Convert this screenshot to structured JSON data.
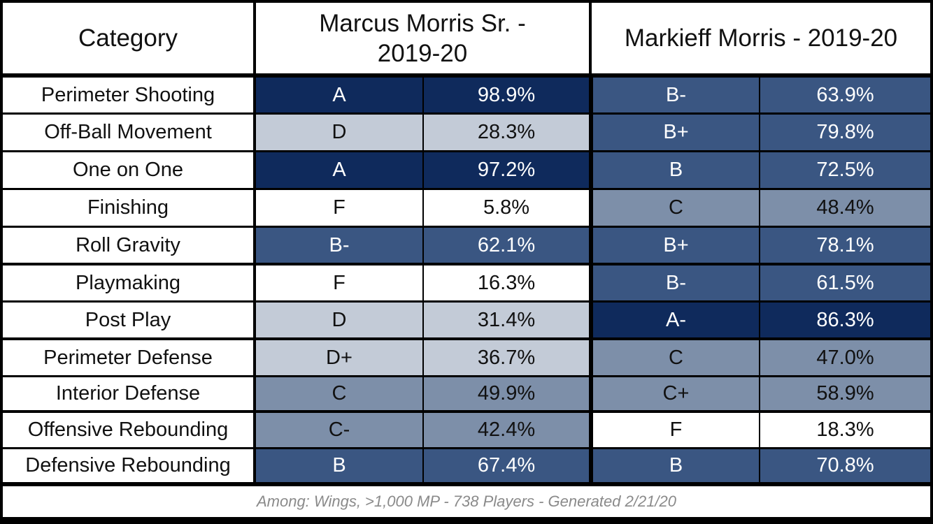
{
  "table": {
    "headers": {
      "category": "Category",
      "player1": "Marcus Morris Sr. - 2019-20",
      "player2": "Markieff Morris - 2019-20"
    },
    "rows": [
      {
        "category": "Perimeter Shooting",
        "p1_grade": "A",
        "p1_pct": "98.9%",
        "p2_grade": "B-",
        "p2_pct": "63.9%"
      },
      {
        "category": "Off-Ball Movement",
        "p1_grade": "D",
        "p1_pct": "28.3%",
        "p2_grade": "B+",
        "p2_pct": "79.8%"
      },
      {
        "category": "One on One",
        "p1_grade": "A",
        "p1_pct": "97.2%",
        "p2_grade": "B",
        "p2_pct": "72.5%"
      },
      {
        "category": "Finishing",
        "p1_grade": "F",
        "p1_pct": "5.8%",
        "p2_grade": "C",
        "p2_pct": "48.4%"
      },
      {
        "category": "Roll Gravity",
        "p1_grade": "B-",
        "p1_pct": "62.1%",
        "p2_grade": "B+",
        "p2_pct": "78.1%"
      },
      {
        "category": "Playmaking",
        "p1_grade": "F",
        "p1_pct": "16.3%",
        "p2_grade": "B-",
        "p2_pct": "61.5%"
      },
      {
        "category": "Post Play",
        "p1_grade": "D",
        "p1_pct": "31.4%",
        "p2_grade": "A-",
        "p2_pct": "86.3%"
      },
      {
        "category": "Perimeter Defense",
        "p1_grade": "D+",
        "p1_pct": "36.7%",
        "p2_grade": "C",
        "p2_pct": "47.0%"
      },
      {
        "category": "Interior Defense",
        "p1_grade": "C",
        "p1_pct": "49.9%",
        "p2_grade": "C+",
        "p2_pct": "58.9%"
      },
      {
        "category": "Offensive Rebounding",
        "p1_grade": "C-",
        "p1_pct": "42.4%",
        "p2_grade": "F",
        "p2_pct": "18.3%"
      },
      {
        "category": "Defensive Rebounding",
        "p1_grade": "B",
        "p1_pct": "67.4%",
        "p2_grade": "B",
        "p2_pct": "70.8%"
      }
    ],
    "footer": "Among: Wings, >1,000 MP - 738 Players - Generated 2/21/20"
  },
  "colors": {
    "A": "#0f2a5c",
    "A-": "#0f2a5c",
    "B+": "#3a5682",
    "B": "#3a5682",
    "B-": "#3a5682",
    "C+": "#7d8fa9",
    "C": "#7d8fa9",
    "C-": "#7d8fa9",
    "D+": "#c3cbd7",
    "D": "#c3cbd7",
    "F": "#ffffff"
  },
  "chart_data": {
    "type": "table",
    "columns": [
      "Category",
      "Marcus Morris Sr. - 2019-20",
      "Markieff Morris - 2019-20"
    ],
    "series": [
      {
        "name": "Marcus Morris Sr. - 2019-20",
        "values": [
          98.9,
          28.3,
          97.2,
          5.8,
          62.1,
          16.3,
          31.4,
          36.7,
          49.9,
          42.4,
          67.4
        ]
      },
      {
        "name": "Markieff Morris - 2019-20",
        "values": [
          63.9,
          79.8,
          72.5,
          48.4,
          78.1,
          61.5,
          86.3,
          47.0,
          58.9,
          18.3,
          70.8
        ]
      }
    ]
  }
}
